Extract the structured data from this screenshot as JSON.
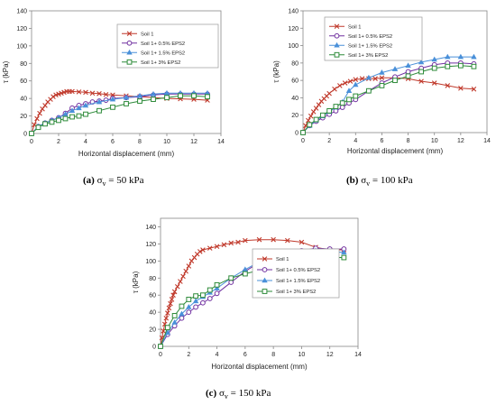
{
  "chart_data": [
    {
      "id": "a",
      "type": "line",
      "caption_tag": "(a)",
      "caption_text": "σ",
      "caption_sub": "v",
      "caption_value": " = 50 kPa",
      "xlabel": "Horizontal displacement (mm)",
      "ylabel": "τ (kPa)",
      "xlim": [
        0,
        14
      ],
      "ylim": [
        0,
        140
      ],
      "xticks": [
        0,
        2,
        4,
        6,
        8,
        10,
        12,
        14
      ],
      "yticks": [
        0,
        20,
        40,
        60,
        80,
        100,
        120,
        140
      ],
      "grid": false,
      "legend_position": "top-right",
      "series": [
        {
          "name": "Soil 1",
          "color": "#c0392b",
          "marker": "x",
          "x": [
            0,
            0.2,
            0.4,
            0.6,
            0.8,
            1.0,
            1.2,
            1.4,
            1.6,
            1.8,
            2.0,
            2.2,
            2.4,
            2.6,
            2.8,
            3.0,
            3.5,
            4.0,
            4.5,
            5.0,
            5.5,
            6.0,
            7.0,
            8.0,
            9.0,
            10.0,
            11.0,
            12.0,
            13.0
          ],
          "y": [
            0,
            10,
            17,
            23,
            28,
            32,
            36,
            39,
            42,
            44,
            45,
            46,
            47,
            48,
            48,
            48,
            47.5,
            47,
            46,
            45.5,
            44.5,
            44,
            43,
            42,
            41,
            40,
            39.5,
            39,
            38
          ]
        },
        {
          "name": "Soil 1+ 0.5% EPS2",
          "color": "#7030a0",
          "marker": "o",
          "x": [
            0,
            0.5,
            1.0,
            1.5,
            2.0,
            2.5,
            3.0,
            3.5,
            4.0,
            4.5,
            5.0,
            5.5,
            6.0,
            7.0,
            8.0,
            9.0,
            10.0,
            11.0,
            12.0,
            13.0
          ],
          "y": [
            0,
            8,
            12,
            15,
            18,
            23,
            29,
            32,
            34,
            36,
            37,
            38,
            40,
            41,
            42,
            44,
            45,
            45,
            45,
            45
          ]
        },
        {
          "name": "Soil 1+ 1.5% EPS2",
          "color": "#4a90d9",
          "marker": "triangle",
          "x": [
            0,
            0.5,
            1.0,
            1.5,
            2.0,
            2.5,
            3.0,
            3.5,
            4.0,
            5.0,
            6.0,
            7.0,
            8.0,
            9.0,
            10.0,
            11.0,
            12.0,
            13.0
          ],
          "y": [
            0,
            8,
            12,
            15,
            18,
            22,
            26,
            29,
            32,
            36,
            39,
            41,
            43,
            45,
            46,
            46,
            46,
            46
          ]
        },
        {
          "name": "Soil 1+ 3% EPS2",
          "color": "#2e8b3a",
          "marker": "square",
          "x": [
            0,
            0.5,
            1.0,
            1.5,
            2.0,
            2.5,
            3.0,
            3.5,
            4.0,
            5.0,
            6.0,
            7.0,
            8.0,
            9.0,
            10.0,
            11.0,
            12.0,
            13.0
          ],
          "y": [
            0,
            7,
            11,
            13,
            15,
            17,
            19,
            20,
            22,
            26,
            30,
            34,
            37,
            39,
            41,
            43,
            43,
            42
          ]
        }
      ]
    },
    {
      "id": "b",
      "type": "line",
      "caption_tag": "(b)",
      "caption_text": "σ",
      "caption_sub": "v",
      "caption_value": " = 100 kPa",
      "xlabel": "Horizontal displacement (mm)",
      "ylabel": "τ (kPa)",
      "xlim": [
        0,
        14
      ],
      "ylim": [
        0,
        140
      ],
      "xticks": [
        0,
        2,
        4,
        6,
        8,
        10,
        12,
        14
      ],
      "yticks": [
        0,
        20,
        40,
        60,
        80,
        100,
        120,
        140
      ],
      "grid": false,
      "legend_position": "top-right",
      "series": [
        {
          "name": "Soil 1",
          "color": "#c0392b",
          "marker": "x",
          "x": [
            0,
            0.2,
            0.4,
            0.6,
            0.8,
            1.0,
            1.2,
            1.4,
            1.6,
            1.8,
            2.0,
            2.4,
            2.8,
            3.2,
            3.6,
            4.0,
            4.5,
            5.0,
            5.5,
            6.0,
            7.0,
            8.0,
            9.0,
            10.0,
            11.0,
            12.0,
            13.0
          ],
          "y": [
            0,
            8,
            14,
            19,
            24,
            28,
            32,
            36,
            39,
            42,
            45,
            50,
            54,
            57,
            59,
            61,
            62,
            62,
            62,
            63,
            63,
            62,
            59,
            57,
            54,
            51,
            50
          ]
        },
        {
          "name": "Soil 1+ 0.5% EPS2",
          "color": "#7030a0",
          "marker": "o",
          "x": [
            0,
            0.5,
            1.0,
            1.5,
            2.0,
            2.5,
            3.0,
            3.5,
            4.0,
            5.0,
            6.0,
            7.0,
            8.0,
            9.0,
            10.0,
            11.0,
            12.0,
            13.0
          ],
          "y": [
            0,
            8,
            13,
            17,
            21,
            25,
            29,
            34,
            38,
            48,
            57,
            64,
            70,
            74,
            78,
            80,
            80,
            79
          ]
        },
        {
          "name": "Soil 1+ 1.5% EPS2",
          "color": "#4a90d9",
          "marker": "triangle",
          "x": [
            0,
            0.5,
            1.0,
            1.5,
            2.0,
            2.5,
            3.0,
            3.5,
            4.0,
            5.0,
            6.0,
            7.0,
            8.0,
            9.0,
            10.0,
            11.0,
            12.0,
            13.0
          ],
          "y": [
            0,
            8,
            14,
            19,
            24,
            29,
            35,
            48,
            55,
            63,
            69,
            73,
            77,
            81,
            84,
            87,
            87,
            87
          ]
        },
        {
          "name": "Soil 1+ 3% EPS2",
          "color": "#2e8b3a",
          "marker": "square",
          "x": [
            0,
            0.5,
            1.0,
            1.5,
            2.0,
            2.5,
            3.0,
            3.5,
            4.0,
            5.0,
            6.0,
            7.0,
            8.0,
            9.0,
            10.0,
            11.0,
            12.0,
            13.0
          ],
          "y": [
            0,
            9,
            15,
            20,
            25,
            30,
            34,
            38,
            42,
            48,
            54,
            60,
            65,
            70,
            74,
            76,
            77,
            76
          ]
        }
      ]
    },
    {
      "id": "c",
      "type": "line",
      "caption_tag": "(c)",
      "caption_text": "σ",
      "caption_sub": "v",
      "caption_value": " = 150 kPa",
      "xlabel": "Horizontal displacement (mm)",
      "ylabel": "τ (kPa)",
      "xlim": [
        0,
        14
      ],
      "ylim": [
        0,
        150
      ],
      "xticks": [
        0,
        2,
        4,
        6,
        8,
        10,
        12,
        14
      ],
      "yticks": [
        0,
        20,
        40,
        60,
        80,
        100,
        120,
        140
      ],
      "grid": false,
      "legend_position": "right",
      "series": [
        {
          "name": "Soil 1",
          "color": "#c0392b",
          "marker": "x",
          "x": [
            0,
            0.1,
            0.2,
            0.3,
            0.4,
            0.5,
            0.6,
            0.7,
            0.8,
            0.9,
            1.0,
            1.2,
            1.4,
            1.6,
            1.8,
            2.0,
            2.2,
            2.4,
            2.6,
            2.8,
            3.0,
            3.5,
            4.0,
            4.5,
            5.0,
            5.5,
            6.0,
            7.0,
            8.0,
            9.0,
            10.0,
            11.0,
            12.0,
            13.0
          ],
          "y": [
            0,
            10,
            18,
            26,
            33,
            39,
            45,
            50,
            55,
            60,
            64,
            70,
            76,
            82,
            88,
            94,
            100,
            104,
            108,
            111,
            113,
            115,
            117,
            119,
            121,
            122,
            124,
            125,
            125,
            124,
            122,
            116,
            113,
            113
          ]
        },
        {
          "name": "Soil 1+ 0.5% EPS2",
          "color": "#7030a0",
          "marker": "o",
          "x": [
            0,
            0.5,
            1.0,
            1.5,
            2.0,
            2.5,
            3.0,
            3.5,
            4.0,
            5.0,
            6.0,
            7.0,
            8.0,
            9.0,
            10.0,
            11.0,
            12.0,
            13.0
          ],
          "y": [
            0,
            14,
            24,
            33,
            40,
            46,
            51,
            56,
            62,
            75,
            88,
            98,
            104,
            109,
            112,
            115,
            114,
            114
          ]
        },
        {
          "name": "Soil 1+ 1.5% EPS2",
          "color": "#4a90d9",
          "marker": "triangle",
          "x": [
            0,
            0.5,
            1.0,
            1.5,
            2.0,
            2.5,
            3.0,
            3.5,
            4.0,
            5.0,
            6.0,
            7.0,
            8.0,
            9.0,
            10.0,
            11.0,
            12.0,
            13.0
          ],
          "y": [
            0,
            16,
            28,
            38,
            46,
            53,
            58,
            63,
            68,
            80,
            90,
            99,
            105,
            108,
            111,
            112,
            111,
            110
          ]
        },
        {
          "name": "Soil 1+ 3% EPS2",
          "color": "#2e8b3a",
          "marker": "square",
          "x": [
            0,
            0.5,
            1.0,
            1.5,
            2.0,
            2.5,
            3.0,
            3.5,
            4.0,
            5.0,
            6.0,
            7.0,
            8.0,
            9.0,
            10.0,
            11.0,
            12.0,
            13.0
          ],
          "y": [
            0,
            22,
            36,
            47,
            55,
            59,
            60,
            66,
            72,
            80,
            85,
            89,
            93,
            96,
            99,
            101,
            104,
            104
          ]
        }
      ]
    }
  ]
}
